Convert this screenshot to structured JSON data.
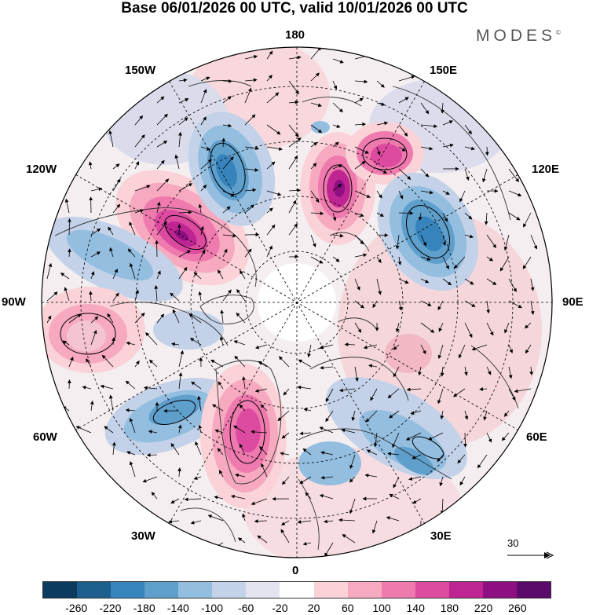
{
  "title": "Base 06/01/2026 00 UTC, valid 10/01/2026 00 UTC",
  "brand": "MODES",
  "brand_mark": "©",
  "longitude_labels": {
    "top": "180",
    "bottom": "0",
    "left": "90W",
    "right": "90E",
    "nw_150": "150W",
    "nw_120": "120W",
    "sw_60": "60W",
    "sw_30": "30W",
    "ne_150": "150E",
    "ne_120": "120E",
    "se_60": "60E",
    "se_30": "30E"
  },
  "reference_vector": {
    "label": "30",
    "icon": "arrow-right-icon"
  },
  "colorbar": {
    "colors": [
      "#0b3b5e",
      "#1c5f8f",
      "#3684bb",
      "#5f9fcc",
      "#94bedf",
      "#c3d2e8",
      "#e4e4f0",
      "#ffffff",
      "#fad2d8",
      "#f6a9bf",
      "#ef7aae",
      "#dd4ba0",
      "#bf2493",
      "#8e0f81",
      "#5a0a6b"
    ],
    "tick_labels": [
      "-260",
      "-220",
      "-180",
      "-140",
      "-100",
      "-60",
      "-20",
      "20",
      "60",
      "100",
      "140",
      "180",
      "220",
      "260"
    ]
  },
  "map_features": {
    "anomaly_centers": [
      {
        "name": "north-pacific-high",
        "color": "#bf2493"
      },
      {
        "name": "alaska-low",
        "color": "#3684bb"
      },
      {
        "name": "siberia-high",
        "color": "#bf2493"
      },
      {
        "name": "east-siberia-low",
        "color": "#3684bb"
      },
      {
        "name": "greenland-high",
        "color": "#dd4ba0"
      },
      {
        "name": "atlantic-low",
        "color": "#5f9fcc"
      },
      {
        "name": "canada-high",
        "color": "#f6a9bf"
      },
      {
        "name": "europe-low",
        "color": "#5f9fcc"
      }
    ]
  }
}
